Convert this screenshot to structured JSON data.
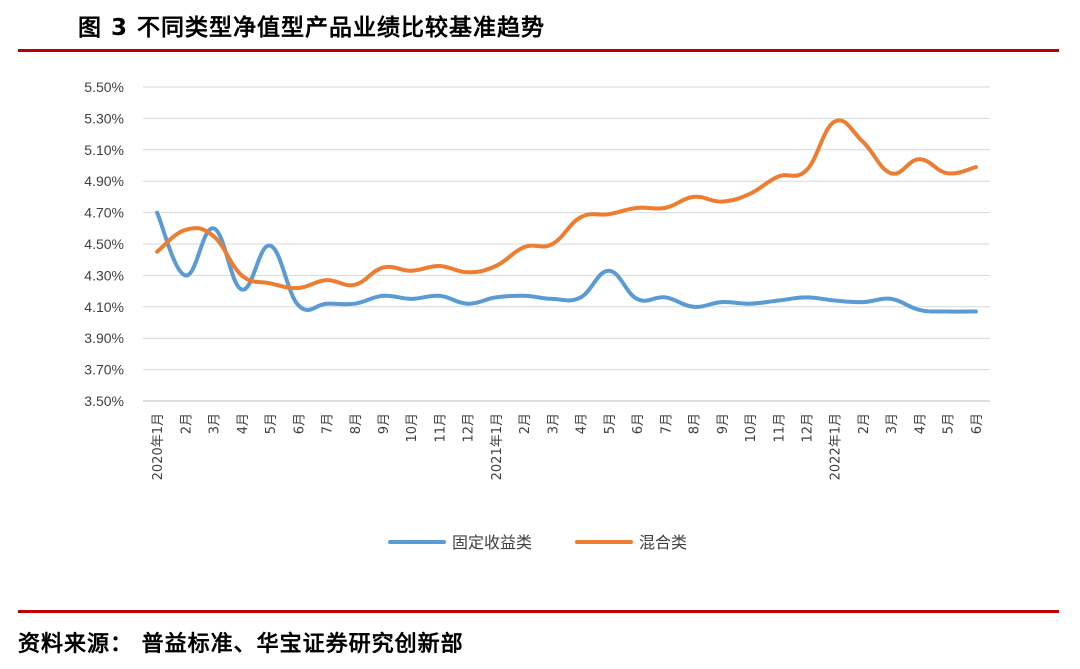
{
  "header": {
    "title": "图 3 不同类型净值型产品业绩比较基准趋势"
  },
  "footer": {
    "source": "资料来源：  普益标准、华宝证券研究创新部"
  },
  "colors": {
    "rule": "#c00000",
    "grid": "#d9d9d9",
    "axis": "#bfbfbf"
  },
  "chart_data": {
    "type": "line",
    "x": [
      "2020年1月",
      "2月",
      "3月",
      "4月",
      "5月",
      "6月",
      "7月",
      "8月",
      "9月",
      "10月",
      "11月",
      "12月",
      "2021年1月",
      "2月",
      "3月",
      "4月",
      "5月",
      "6月",
      "7月",
      "8月",
      "9月",
      "10月",
      "11月",
      "12月",
      "2022年1月",
      "2月",
      "3月",
      "4月",
      "5月",
      "6月"
    ],
    "yticks": [
      "3.50%",
      "3.70%",
      "3.90%",
      "4.10%",
      "4.30%",
      "4.50%",
      "4.70%",
      "4.90%",
      "5.10%",
      "5.30%",
      "5.50%"
    ],
    "ylim": [
      3.5,
      5.5
    ],
    "grid": true,
    "legend_position": "bottom",
    "series": [
      {
        "name": "固定收益类",
        "color": "#5b9bd5",
        "values": [
          4.7,
          4.3,
          4.6,
          4.21,
          4.49,
          4.11,
          4.12,
          4.12,
          4.17,
          4.15,
          4.17,
          4.12,
          4.16,
          4.17,
          4.15,
          4.16,
          4.33,
          4.15,
          4.16,
          4.1,
          4.13,
          4.12,
          4.14,
          4.16,
          4.14,
          4.13,
          4.15,
          4.08,
          4.07,
          4.07
        ]
      },
      {
        "name": "混合类",
        "color": "#ed7d31",
        "values": [
          4.45,
          4.59,
          4.55,
          4.3,
          4.25,
          4.22,
          4.27,
          4.24,
          4.35,
          4.33,
          4.36,
          4.32,
          4.36,
          4.48,
          4.5,
          4.67,
          4.69,
          4.73,
          4.73,
          4.8,
          4.77,
          4.82,
          4.93,
          4.97,
          5.28,
          5.15,
          4.95,
          5.04,
          4.95,
          4.99
        ]
      }
    ]
  }
}
